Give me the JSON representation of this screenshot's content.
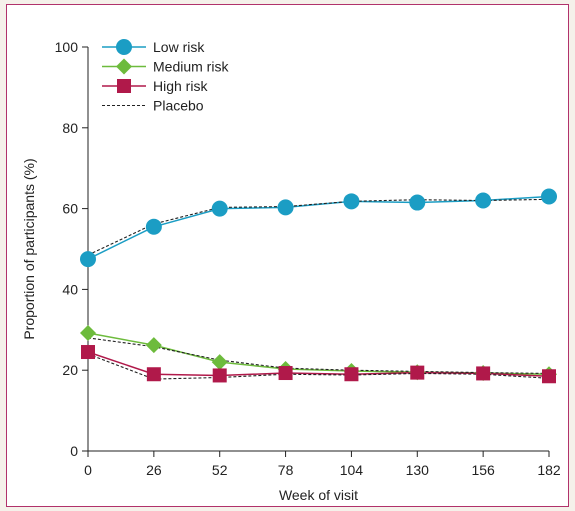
{
  "chart_data": {
    "type": "line",
    "title": "",
    "xlabel": "Week of visit",
    "ylabel": "Proportion of participants (%)",
    "x": [
      0,
      26,
      52,
      78,
      104,
      130,
      156,
      182
    ],
    "xlim": [
      0,
      182
    ],
    "ylim": [
      0,
      100
    ],
    "xticks": [
      "0",
      "26",
      "52",
      "78",
      "104",
      "130",
      "156",
      "182"
    ],
    "yticks": [
      "0",
      "20",
      "40",
      "60",
      "80",
      "100"
    ],
    "grid": false,
    "legend_position": "top-left",
    "series": [
      {
        "name": "Low risk",
        "color": "#1b9dc4",
        "marker": "circle",
        "values": [
          47.5,
          55.5,
          60.0,
          60.3,
          61.8,
          61.5,
          62.0,
          63.0
        ]
      },
      {
        "name": "Medium risk",
        "color": "#6dbb3c",
        "marker": "diamond",
        "values": [
          29.2,
          26.2,
          22.0,
          20.3,
          19.8,
          19.5,
          19.3,
          19.0
        ]
      },
      {
        "name": "High risk",
        "color": "#b0194a",
        "marker": "square",
        "values": [
          24.5,
          19.0,
          18.7,
          19.3,
          19.0,
          19.4,
          19.2,
          18.5
        ]
      },
      {
        "name": "Placebo",
        "color": "#222222",
        "marker": "none",
        "dashed": true,
        "groups": [
          [
            48.5,
            56.2,
            60.3,
            60.5,
            61.8,
            62.2,
            62.0,
            62.3
          ],
          [
            28.0,
            25.8,
            22.5,
            20.5,
            20.0,
            19.7,
            19.4,
            19.2
          ],
          [
            24.0,
            17.8,
            18.2,
            19.0,
            18.8,
            19.2,
            19.0,
            18.0
          ]
        ]
      }
    ]
  }
}
